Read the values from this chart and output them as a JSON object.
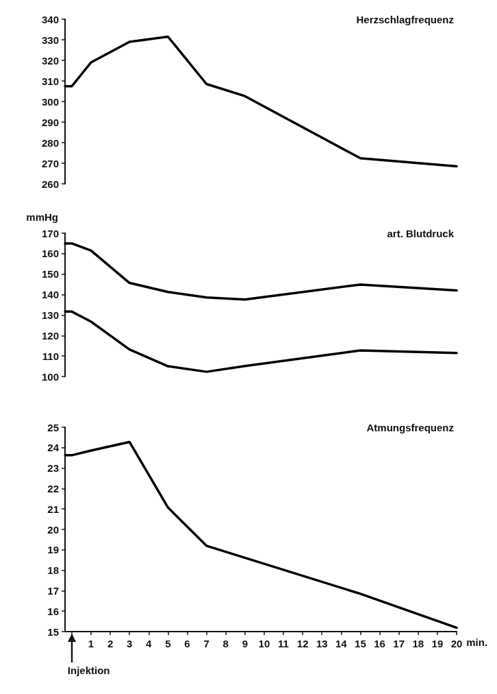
{
  "chart_data": [
    {
      "type": "line",
      "title": "Herzschlagfrequenz",
      "xlim": [
        -0.35,
        20
      ],
      "ylim": [
        260,
        340
      ],
      "yticks": [
        260,
        270,
        280,
        290,
        300,
        310,
        320,
        330,
        340
      ],
      "tick_labels": "y",
      "grid": false,
      "marker": "none",
      "line_style": "solid",
      "series": [
        {
          "color": "#000000",
          "x": [
            -0.35,
            0,
            1,
            3,
            5,
            7,
            9,
            15,
            20
          ],
          "values": [
            307.4,
            307.4,
            319,
            329,
            331.5,
            308.5,
            302.6,
            272.4,
            268.5
          ]
        }
      ]
    },
    {
      "type": "line",
      "title": "art. Blutdruck",
      "ylabel": "mmHg",
      "xlim": [
        -0.35,
        20
      ],
      "ylim": [
        100,
        170
      ],
      "yticks": [
        100,
        110,
        120,
        130,
        140,
        150,
        160,
        170
      ],
      "tick_labels": "y",
      "grid": false,
      "marker": "none",
      "line_style": "solid",
      "series": [
        {
          "color": "#000000",
          "x": [
            -0.35,
            0,
            1,
            3,
            5,
            7,
            9,
            15,
            20
          ],
          "values": [
            165,
            165,
            161.5,
            145.7,
            141.3,
            138.6,
            137.6,
            144.9,
            142
          ]
        },
        {
          "color": "#000000",
          "x": [
            -0.35,
            0,
            1,
            3,
            5,
            7,
            9,
            15,
            20
          ],
          "values": [
            131.7,
            131.7,
            126.8,
            113.2,
            105,
            102.3,
            105.1,
            112.7,
            111.5
          ]
        }
      ]
    },
    {
      "type": "line",
      "title": "Atmungsfrequenz",
      "xlabel": "min.",
      "xlim": [
        -0.35,
        20
      ],
      "ylim": [
        15,
        25
      ],
      "yticks": [
        15,
        16,
        17,
        18,
        19,
        20,
        21,
        22,
        23,
        24,
        25
      ],
      "xticks": [
        {
          "value": 0,
          "label": null
        },
        1,
        2,
        3,
        4,
        5,
        6,
        7,
        8,
        9,
        10,
        11,
        12,
        13,
        14,
        15,
        16,
        17,
        18,
        19,
        20
      ],
      "grid": false,
      "marker": "none",
      "line_style": "solid",
      "annotations": [
        "Injektion"
      ],
      "series": [
        {
          "color": "#000000",
          "x": [
            -0.35,
            0,
            1,
            3,
            5,
            7,
            15,
            20
          ],
          "values": [
            23.63,
            23.63,
            23.86,
            24.28,
            21.07,
            19.2,
            16.85,
            15.19
          ]
        }
      ]
    }
  ]
}
